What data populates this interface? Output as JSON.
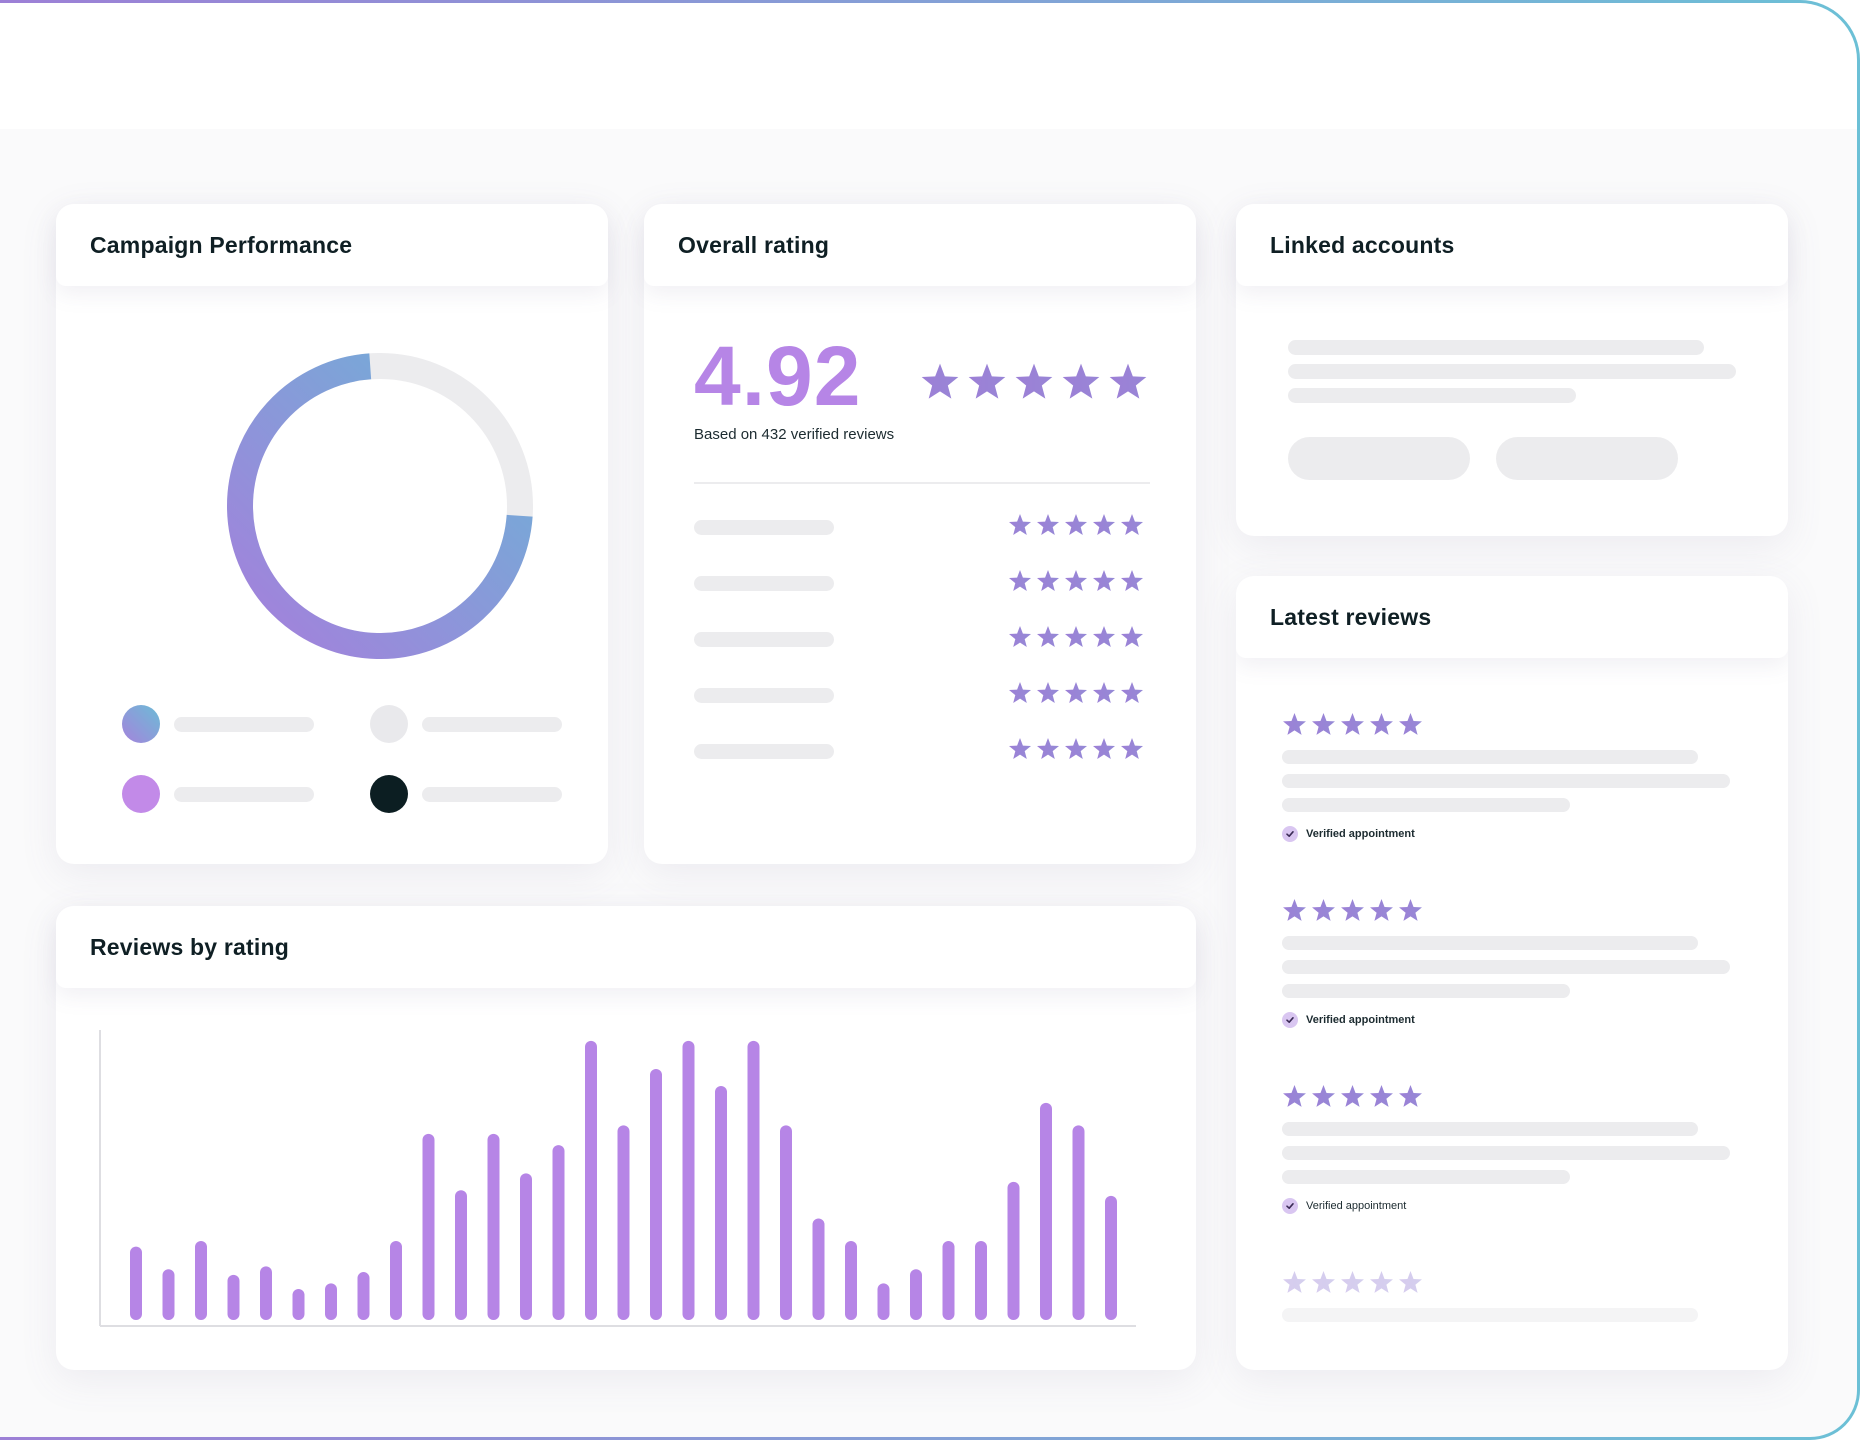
{
  "colors": {
    "accent_purple": "#b685e6",
    "gradient_start": "#9d7fd6",
    "gradient_end": "#6cc0d6",
    "skeleton": "#ececee",
    "dark": "#0c1e22"
  },
  "campaign": {
    "title": "Campaign Performance",
    "donut_fraction": 0.75,
    "legend_colors": [
      "#8f9bd8",
      "#e9e9ec",
      "#c28ae8",
      "#0c1e22"
    ]
  },
  "overall": {
    "title": "Overall rating",
    "score": "4.92",
    "subtitle": "Based on 432 verified reviews",
    "stars": 5,
    "rows": 5
  },
  "linked": {
    "title": "Linked accounts"
  },
  "latest": {
    "title": "Latest reviews",
    "items": [
      {
        "stars": 5,
        "verified_label": "Verified appointment"
      },
      {
        "stars": 5,
        "verified_label": "Verified appointment"
      },
      {
        "stars": 5,
        "verified_label": "Verified appointment"
      },
      {
        "stars": 5,
        "verified_label": ""
      }
    ]
  },
  "reviews_chart": {
    "title": "Reviews by rating"
  },
  "chart_data": {
    "type": "bar",
    "title": "Reviews by rating",
    "xlabel": "",
    "ylabel": "",
    "ylim": [
      0,
      100
    ],
    "grid": false,
    "values": [
      26,
      18,
      28,
      16,
      19,
      11,
      13,
      17,
      28,
      66,
      46,
      66,
      52,
      62,
      99,
      69,
      89,
      99,
      83,
      99,
      69,
      36,
      28,
      13,
      18,
      28,
      28,
      49,
      77,
      69,
      44
    ]
  }
}
